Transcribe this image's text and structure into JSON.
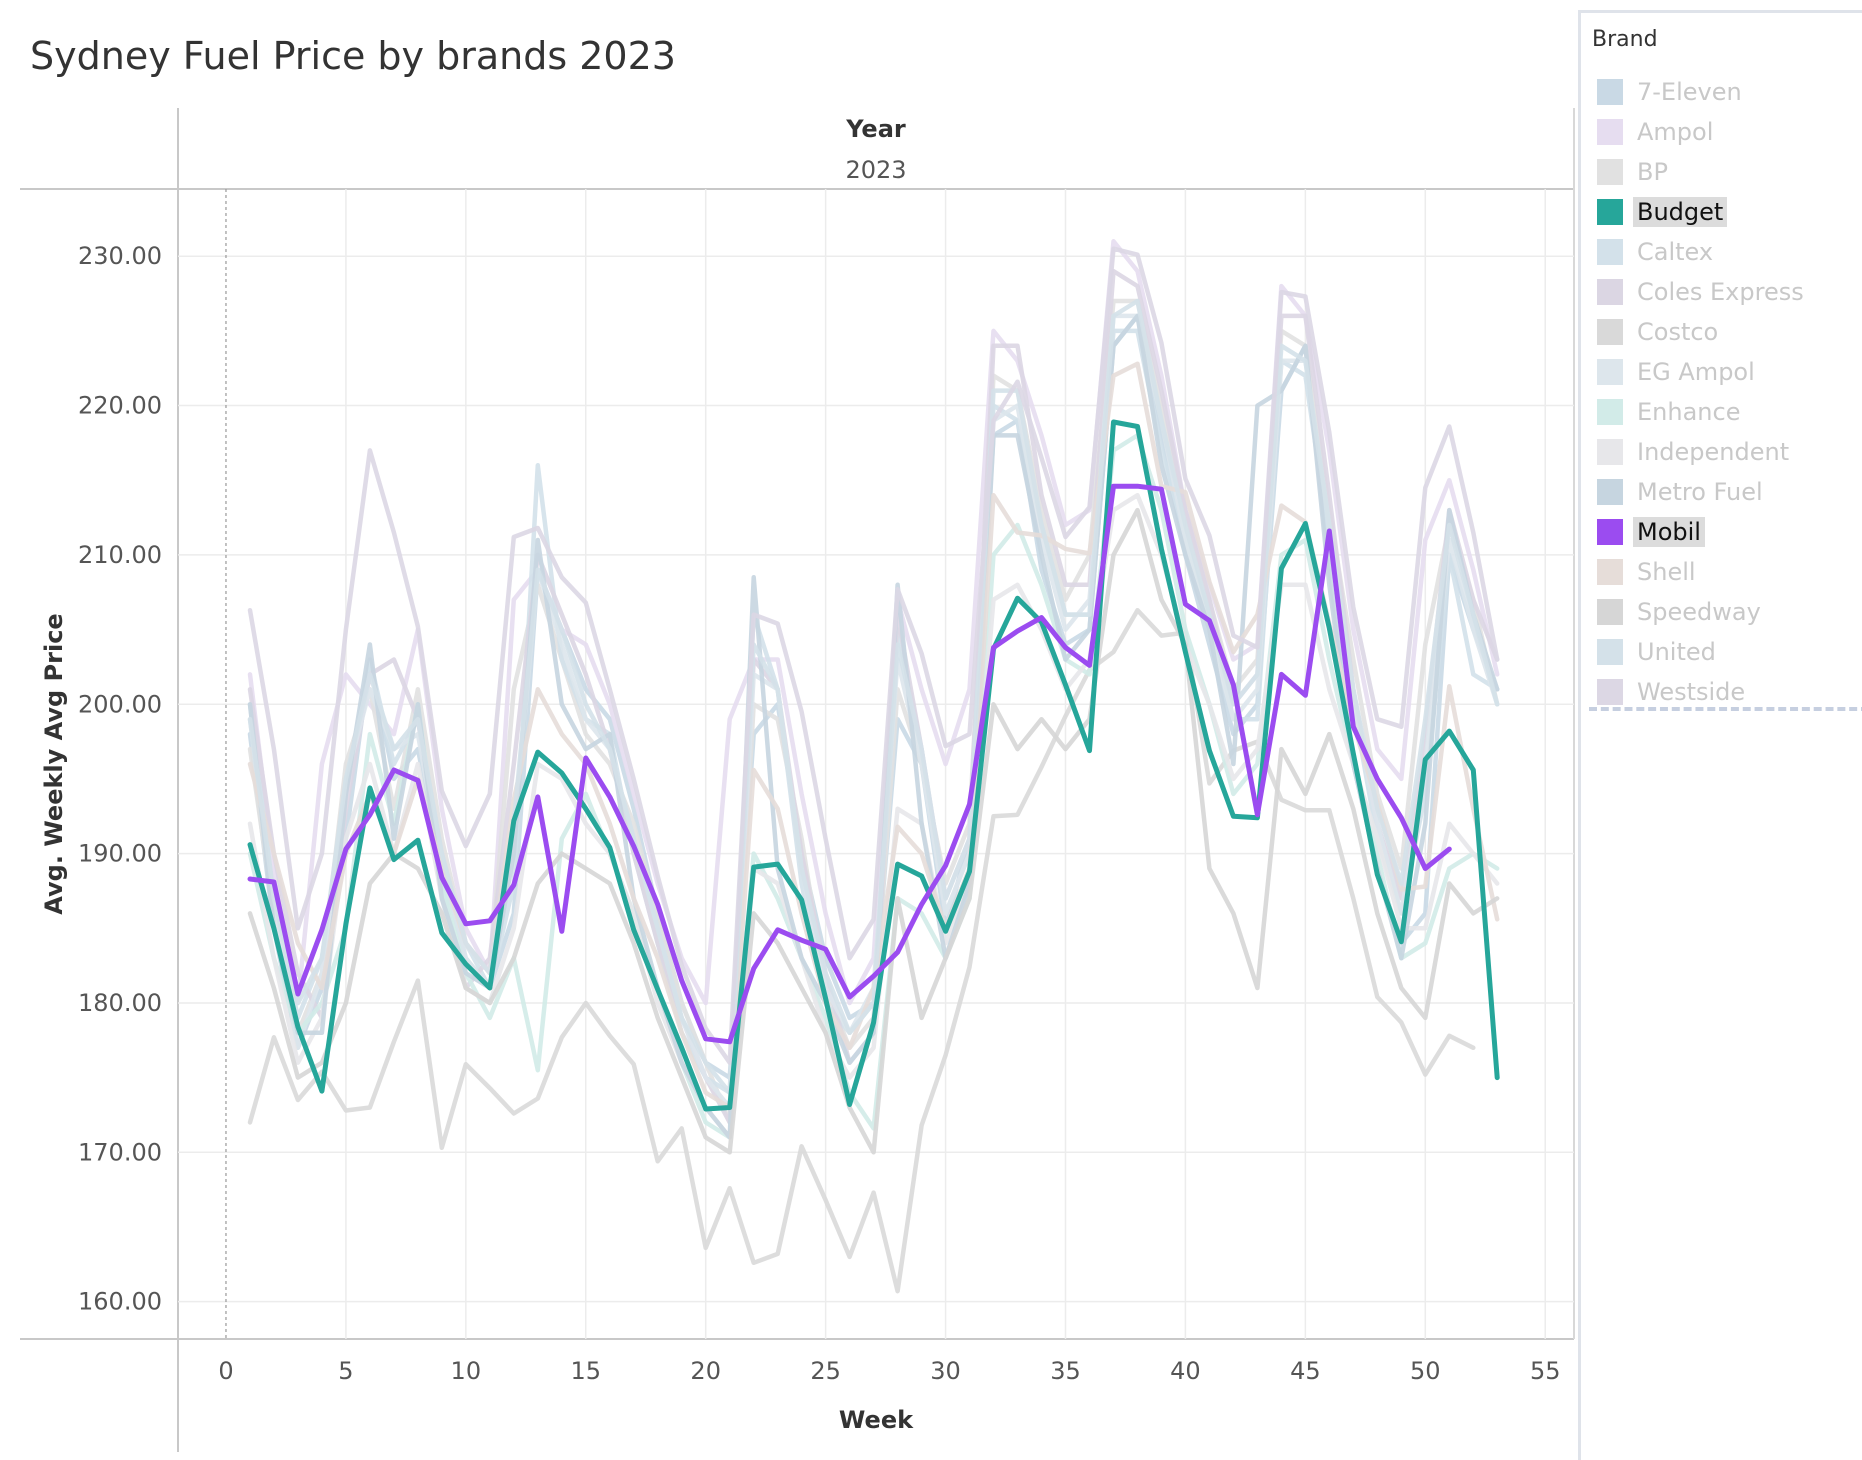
{
  "title": "Sydney Fuel Price by brands 2023",
  "colors": {
    "budget": "#26a69a",
    "mobil": "#9b4cf0"
  },
  "legend": {
    "title": "Brand",
    "items": [
      {
        "label": "7-Eleven",
        "color": "#c9d9e5",
        "highlighted": false
      },
      {
        "label": "Ampol",
        "color": "#e6ddf0",
        "highlighted": false
      },
      {
        "label": "BP",
        "color": "#e1e1e1",
        "highlighted": false
      },
      {
        "label": "Budget",
        "color": "#26a69a",
        "highlighted": true
      },
      {
        "label": "Caltex",
        "color": "#d3e1ea",
        "highlighted": false
      },
      {
        "label": "Coles Express",
        "color": "#dbd6e3",
        "highlighted": false
      },
      {
        "label": "Costco",
        "color": "#d9d9d9",
        "highlighted": false
      },
      {
        "label": "EG Ampol",
        "color": "#dde6ec",
        "highlighted": false
      },
      {
        "label": "Enhance",
        "color": "#d2ebe8",
        "highlighted": false
      },
      {
        "label": "Independent",
        "color": "#e7e7ea",
        "highlighted": false
      },
      {
        "label": "Metro Fuel",
        "color": "#c6d5e0",
        "highlighted": false
      },
      {
        "label": "Mobil",
        "color": "#9b4cf0",
        "highlighted": true
      },
      {
        "label": "Shell",
        "color": "#e6ddd9",
        "highlighted": false
      },
      {
        "label": "Speedway",
        "color": "#d6d6d6",
        "highlighted": false
      },
      {
        "label": "United",
        "color": "#d4e1e9",
        "highlighted": false
      },
      {
        "label": "Westside",
        "color": "#dcd7e4",
        "highlighted": false
      }
    ]
  },
  "chart_data": {
    "type": "line",
    "title": "Sydney Fuel Price by brands 2023",
    "column_header": "Year",
    "column_value": "2023",
    "xlabel": "Week",
    "ylabel": "Avg. Weekly Avg Price",
    "xlim": [
      -2,
      56.2
    ],
    "ylim": [
      157.5,
      234.5
    ],
    "x_ticks": [
      "0",
      "5",
      "10",
      "15",
      "20",
      "25",
      "30",
      "35",
      "40",
      "45",
      "50",
      "55"
    ],
    "y_ticks": [
      "160.00",
      "170.00",
      "180.00",
      "190.00",
      "200.00",
      "210.00",
      "220.00",
      "230.00"
    ],
    "grid": true,
    "legend_position": "right",
    "series": [
      {
        "name": "7-Eleven",
        "color": "#c9d9e5",
        "x_start": 1,
        "values": [
          198,
          185,
          177,
          181,
          191,
          203,
          195,
          197,
          189,
          183,
          181,
          186,
          209,
          205,
          201,
          199,
          193,
          186,
          180,
          176,
          175,
          198,
          200,
          190,
          183,
          179,
          180,
          199,
          196,
          185,
          191,
          218,
          219,
          209,
          204,
          205,
          224,
          226,
          218,
          210,
          204,
          198,
          200,
          221,
          224,
          209,
          196,
          189,
          184,
          186,
          210,
          205,
          201
        ]
      },
      {
        "name": "Ampol",
        "color": "#e6ddf0",
        "x_start": 1,
        "values": [
          202,
          189,
          180,
          196,
          202,
          200,
          198,
          205,
          193,
          185,
          182,
          207,
          209,
          205,
          204,
          200,
          194,
          188,
          183,
          180,
          199,
          203,
          203,
          194,
          186,
          180,
          183,
          207,
          201,
          196,
          201,
          225,
          223,
          218,
          212,
          213,
          231,
          229,
          222,
          213,
          208,
          203,
          204,
          228,
          226,
          217,
          205,
          197,
          195,
          211,
          215,
          209,
          202
        ]
      },
      {
        "name": "BP",
        "color": "#e1e1e1",
        "x_start": 1,
        "values": [
          197,
          186,
          178,
          182,
          196,
          201,
          193,
          201,
          191,
          184,
          182,
          201,
          208,
          203,
          198,
          196,
          192,
          186,
          180,
          176,
          172,
          200,
          199,
          191,
          181,
          177,
          179,
          201,
          196,
          188,
          192,
          222,
          221,
          213,
          207,
          210,
          227,
          227,
          220,
          212,
          207,
          201,
          203,
          225,
          224,
          213,
          203,
          194,
          189,
          204,
          212,
          207,
          200
        ]
      },
      {
        "name": "Caltex",
        "color": "#d3e1ea",
        "x_start": 1,
        "values": [
          200,
          187,
          179,
          183,
          194,
          203,
          196,
          199,
          190,
          184,
          181,
          188,
          216,
          203,
          199,
          198,
          190,
          184,
          178,
          175,
          174,
          206,
          201,
          188,
          180,
          178,
          180,
          205,
          197,
          186,
          190,
          220,
          219,
          212,
          206,
          206,
          225,
          225,
          217,
          211,
          206,
          199,
          199,
          223,
          222,
          211,
          200,
          191,
          186,
          194,
          210,
          202,
          201
        ]
      },
      {
        "name": "Coles Express",
        "color": "#dbd6e3",
        "x_start": 1,
        "values": [
          201,
          190,
          182,
          179,
          193,
          202,
          203,
          199,
          188,
          181,
          183,
          196,
          210,
          206,
          202,
          197,
          190,
          184,
          179,
          175,
          172,
          203,
          201,
          190,
          182,
          176,
          178,
          206,
          197,
          187,
          191,
          224,
          224,
          214,
          208,
          208,
          229,
          228,
          221,
          213,
          207,
          200,
          202,
          226,
          226,
          214,
          201,
          192,
          187,
          198,
          213,
          207,
          203
        ]
      },
      {
        "name": "Costco",
        "color": "#d9d9d9",
        "x_start": 1,
        "values": [
          172,
          177.7,
          173.5,
          175.4,
          172.8,
          173.0,
          177.4,
          181.5,
          170.3,
          175.9,
          174.3,
          172.6,
          173.6,
          177.7,
          180.0,
          177.8,
          175.9,
          169.4,
          171.6,
          163.6,
          167.6,
          162.6,
          163.2,
          170.4,
          166.8,
          163.0,
          167.3,
          160.7,
          171.8,
          176.5,
          182.4,
          192.5,
          192.6,
          195.8,
          199.2,
          202.3,
          203.5,
          206.3,
          204.6,
          204.8,
          194.7,
          196.9,
          197.5,
          193.6,
          192.9,
          192.9,
          187.0,
          180.4,
          178.7,
          175.2,
          177.8,
          177.0
        ]
      },
      {
        "name": "EG Ampol",
        "color": "#dde6ec",
        "x_start": 1,
        "values": [
          199,
          186,
          177,
          182,
          195,
          201,
          197,
          198,
          189,
          183,
          181,
          191,
          209,
          204,
          199,
          197,
          191,
          185,
          179,
          175,
          173,
          202,
          201,
          189,
          181,
          178,
          181,
          203,
          196,
          186,
          190,
          219,
          220,
          211,
          205,
          207,
          226,
          226,
          219,
          211,
          205,
          199,
          201,
          223,
          223,
          212,
          200,
          192,
          186,
          196,
          211,
          205,
          200
        ]
      },
      {
        "name": "Enhance",
        "color": "#d2ebe8",
        "x_start": 1,
        "values": [
          190,
          183,
          178,
          180,
          185,
          198,
          192,
          200,
          188,
          182,
          179,
          183,
          175.5,
          191,
          194,
          190,
          186,
          181,
          176,
          172,
          171,
          190,
          187,
          183,
          179,
          174,
          171.6,
          187,
          186,
          183,
          187,
          210,
          212,
          208,
          203,
          202,
          217,
          218,
          213,
          205,
          200,
          194,
          196,
          210,
          211,
          203,
          196,
          190,
          183,
          184,
          189,
          190,
          189
        ]
      },
      {
        "name": "Independent",
        "color": "#e7e7ea",
        "x_start": 1,
        "values": [
          192,
          183,
          176,
          179,
          191,
          196,
          190,
          196,
          187,
          181,
          180,
          185,
          196,
          195,
          192,
          190,
          186,
          180,
          176,
          173,
          171,
          189,
          188,
          183,
          178,
          175,
          177,
          193,
          192,
          184,
          188,
          207,
          208,
          205,
          201,
          203,
          213,
          214,
          210,
          204,
          200,
          195,
          197,
          208,
          208,
          201,
          196,
          191,
          185,
          185,
          192,
          190,
          188
        ]
      },
      {
        "name": "Metro Fuel",
        "color": "#c6d5e0",
        "x_start": 1,
        "values": [
          200,
          185,
          178,
          178,
          194,
          204,
          191,
          200,
          187,
          182,
          181,
          190,
          211,
          200,
          197,
          198,
          187,
          181,
          176,
          173,
          171,
          208.5,
          189,
          183,
          180,
          176,
          178,
          208,
          192,
          183,
          188,
          218,
          218,
          210,
          203,
          205,
          224,
          226,
          216,
          210,
          205,
          196,
          220,
          221,
          224,
          208,
          196,
          189,
          183,
          192,
          213,
          206,
          201
        ]
      },
      {
        "name": "Shell",
        "color": "#e6ddd9",
        "x_start": 1,
        "values": [
          196,
          190,
          184,
          181,
          190,
          194,
          190,
          195,
          189,
          184,
          182,
          193.6,
          201,
          198,
          196,
          192,
          187,
          183,
          178,
          174,
          173,
          195.6,
          193,
          186,
          180,
          177,
          181,
          191.8,
          190,
          185,
          189,
          214,
          211.5,
          211.3,
          210.4,
          210.1,
          222,
          222.8,
          214.6,
          214.2,
          208.2,
          203.5,
          206,
          213.3,
          212.2,
          205.4,
          198.7,
          193.4,
          187.6,
          187.8,
          201.2,
          193,
          185.6
        ]
      },
      {
        "name": "Speedway",
        "color": "#d6d6d6",
        "x_start": 1,
        "values": [
          186,
          181,
          175,
          176,
          180,
          188,
          190,
          189,
          186,
          181,
          180,
          183,
          188,
          190,
          189,
          188,
          184,
          179,
          175,
          171,
          170,
          186,
          184,
          181,
          178,
          173,
          170,
          187,
          179,
          183,
          187,
          200,
          197,
          199,
          197,
          199,
          210,
          213,
          207,
          204,
          189,
          186,
          181,
          197,
          194,
          198,
          193,
          186,
          181,
          179,
          188,
          186,
          187
        ]
      },
      {
        "name": "United",
        "color": "#d4e1e9",
        "x_start": 1,
        "values": [
          199,
          187,
          180,
          183,
          195,
          202,
          197,
          199,
          190,
          184,
          182,
          192,
          209,
          205,
          200,
          197,
          191,
          185,
          179,
          176,
          174,
          204,
          201,
          189,
          182,
          178,
          180,
          204,
          197,
          187,
          191,
          221,
          221,
          212,
          206,
          206,
          226,
          227,
          219,
          212,
          206,
          200,
          202,
          224,
          223,
          212,
          201,
          193,
          188,
          199,
          212,
          206,
          200
        ]
      },
      {
        "name": "Westside",
        "color": "#dcd7e4",
        "x_start": 1,
        "values": [
          206.3,
          197,
          185,
          190,
          205,
          217,
          211.5,
          205.2,
          194.2,
          190.5,
          194,
          211.2,
          211.8,
          208.5,
          206.8,
          201,
          195,
          188.5,
          182.5,
          178.3,
          176,
          206,
          205.4,
          199.5,
          191,
          183,
          185.6,
          207.7,
          203.4,
          197.2,
          198,
          219,
          221.6,
          216.5,
          211.2,
          213.2,
          230.5,
          230.1,
          224.2,
          215.1,
          211.3,
          204.6,
          203.8,
          227.6,
          227.3,
          218.2,
          206.5,
          199,
          198.5,
          214.5,
          218.6,
          211.5,
          203
        ]
      },
      {
        "name": "Budget",
        "color": "#26a69a",
        "x_start": 1,
        "values": [
          190.6,
          185,
          178.4,
          174.1,
          185.3,
          194.4,
          189.6,
          190.9,
          184.7,
          182.6,
          181,
          192.2,
          196.8,
          195.4,
          193,
          190.4,
          184.9,
          180.9,
          177,
          172.9,
          173,
          189.1,
          189.3,
          186.9,
          180.3,
          173.2,
          178.7,
          189.3,
          188.5,
          184.8,
          188.8,
          203.7,
          207.1,
          205.5,
          201.3,
          196.9,
          218.9,
          218.6,
          210.4,
          203.5,
          196.9,
          192.5,
          192.4,
          209.1,
          212.1,
          205.1,
          196.7,
          188.6,
          184.1,
          196.3,
          198.2,
          195.6,
          175
        ]
      },
      {
        "name": "Mobil",
        "color": "#9b4cf0",
        "x_start": 1,
        "values": [
          188.3,
          188.1,
          180.6,
          184.9,
          190.3,
          192.6,
          195.6,
          194.9,
          188.4,
          185.3,
          185.5,
          187.9,
          193.8,
          184.8,
          196.4,
          193.8,
          190.5,
          186.6,
          181.5,
          177.6,
          177.4,
          182.3,
          184.9,
          184.2,
          183.6,
          180.4,
          181.8,
          183.4,
          186.6,
          189.2,
          193.3,
          203.8,
          204.9,
          205.8,
          203.8,
          202.6,
          214.6,
          214.6,
          214.4,
          206.7,
          205.6,
          201.3,
          192.6,
          202,
          200.6,
          211.6,
          198.5,
          195,
          192.4,
          189,
          190.3
        ]
      }
    ]
  }
}
